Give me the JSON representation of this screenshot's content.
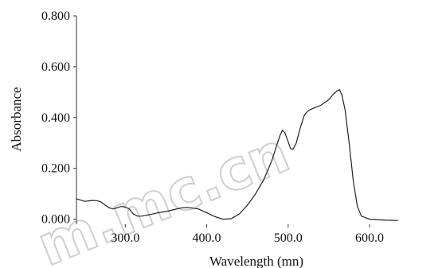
{
  "chart_data": {
    "type": "line",
    "xlabel": "Wavelength (mn)",
    "ylabel": "Absorbance",
    "xlim": [
      240,
      690
    ],
    "ylim": [
      -0.02,
      0.8
    ],
    "x_ticks": [
      300,
      400,
      500,
      600
    ],
    "x_tick_labels": [
      "300.0",
      "400.0",
      "500.0",
      "600.0"
    ],
    "y_ticks": [
      0.0,
      0.2,
      0.4,
      0.6,
      0.8
    ],
    "y_tick_labels": [
      "0.000",
      "0.200",
      "0.400",
      "0.600",
      "0.800"
    ],
    "grid": false,
    "series": [
      {
        "x": [
          240,
          245,
          250,
          255,
          260,
          265,
          270,
          275,
          280,
          285,
          290,
          295,
          300,
          305,
          310,
          315,
          320,
          330,
          340,
          350,
          360,
          370,
          375,
          380,
          390,
          400,
          410,
          420,
          430,
          440,
          450,
          460,
          470,
          480,
          485,
          490,
          493,
          496,
          500,
          503,
          506,
          510,
          515,
          520,
          525,
          530,
          540,
          550,
          555,
          560,
          563,
          566,
          570,
          575,
          580,
          585,
          590,
          600,
          620,
          635
        ],
        "y": [
          0.08,
          0.075,
          0.07,
          0.072,
          0.074,
          0.073,
          0.068,
          0.056,
          0.045,
          0.04,
          0.045,
          0.05,
          0.048,
          0.04,
          0.02,
          0.012,
          0.012,
          0.018,
          0.025,
          0.03,
          0.038,
          0.045,
          0.046,
          0.045,
          0.04,
          0.025,
          0.01,
          0.0,
          0.002,
          0.02,
          0.055,
          0.1,
          0.155,
          0.23,
          0.28,
          0.33,
          0.35,
          0.34,
          0.305,
          0.278,
          0.275,
          0.3,
          0.36,
          0.41,
          0.428,
          0.435,
          0.448,
          0.47,
          0.49,
          0.505,
          0.51,
          0.49,
          0.43,
          0.3,
          0.15,
          0.05,
          0.012,
          0.0,
          -0.004,
          -0.005
        ]
      }
    ],
    "watermark": "m.mc.cn"
  }
}
